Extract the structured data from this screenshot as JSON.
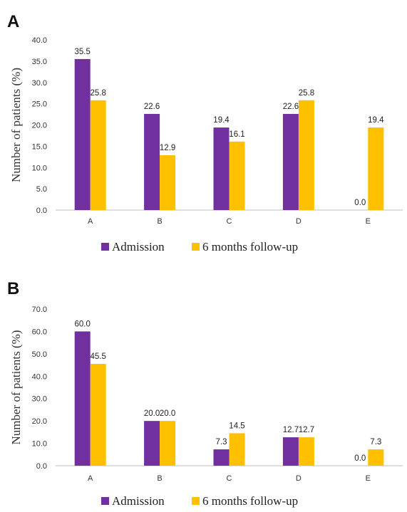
{
  "colors": {
    "admission": "#7030A0",
    "followup": "#FFC000",
    "axis": "#bfbfbf"
  },
  "chart_data": [
    {
      "panel": "A",
      "type": "bar",
      "categories": [
        "A",
        "B",
        "C",
        "D",
        "E"
      ],
      "series": [
        {
          "name": "Admission",
          "values": [
            35.5,
            22.6,
            19.4,
            22.6,
            0.0
          ]
        },
        {
          "name": "6 months follow-up",
          "values": [
            25.8,
            12.9,
            16.1,
            25.8,
            19.4
          ]
        }
      ],
      "ylabel": "Number of patients (%)",
      "ylim": [
        0,
        40
      ],
      "yticks": [
        "0.0",
        "5.0",
        "10.0",
        "15.0",
        "20.0",
        "25.0",
        "30.0",
        "35.0",
        "40.0"
      ],
      "legend": "bottom"
    },
    {
      "panel": "B",
      "type": "bar",
      "categories": [
        "A",
        "B",
        "C",
        "D",
        "E"
      ],
      "series": [
        {
          "name": "Admission",
          "values": [
            60.0,
            20.0,
            7.3,
            12.7,
            0.0
          ]
        },
        {
          "name": "6 months follow-up",
          "values": [
            45.5,
            20.0,
            14.5,
            12.7,
            7.3
          ]
        }
      ],
      "ylabel": "Number of patients (%)",
      "ylim": [
        0,
        70
      ],
      "yticks": [
        "0.0",
        "10.0",
        "20.0",
        "30.0",
        "40.0",
        "50.0",
        "60.0",
        "70.0"
      ],
      "legend": "bottom"
    }
  ]
}
